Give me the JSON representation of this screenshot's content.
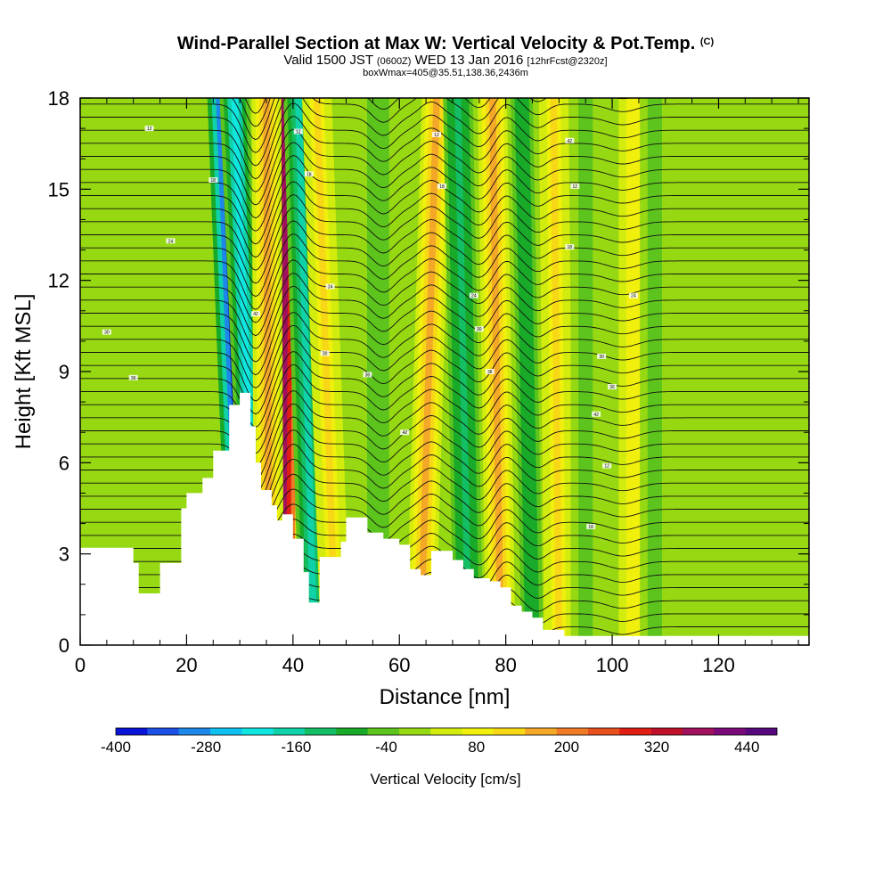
{
  "header": {
    "title": "Wind-Parallel Section at Max W: Vertical Velocity & Pot.Temp.",
    "title_tag": "(C)",
    "subtitle_a": "Valid 1500 JST",
    "subtitle_b": "(0600Z)",
    "subtitle_c": "WED 13 Jan 2016",
    "subtitle_d": "[12hrFcst@2320z]",
    "line3": "boxWmax=405@35.51,138.36,2436m"
  },
  "chart_data": {
    "type": "heatmap",
    "title": "Wind-Parallel Section at Max W: Vertical Velocity & Pot.Temp.",
    "xlabel": "Distance [nm]",
    "ylabel": "Height [Kft MSL]",
    "xlim": [
      0,
      137
    ],
    "ylim": [
      0,
      18
    ],
    "x_ticks": [
      "0",
      "20",
      "40",
      "60",
      "80",
      "100",
      "120"
    ],
    "y_ticks": [
      "0",
      "3",
      "6",
      "9",
      "12",
      "15",
      "18"
    ],
    "x_tick_values": [
      0,
      20,
      40,
      60,
      80,
      100,
      120
    ],
    "y_tick_values": [
      0,
      3,
      6,
      9,
      12,
      15,
      18
    ],
    "colorbar": {
      "title": "Vertical Velocity [cm/s]",
      "min": -400,
      "max": 480,
      "labels": [
        "-400",
        "-280",
        "-160",
        "-40",
        "80",
        "200",
        "320",
        "440"
      ],
      "label_values": [
        -400,
        -280,
        -160,
        -40,
        80,
        200,
        320,
        440
      ],
      "colors": [
        "#0a14d6",
        "#1c50e6",
        "#1e88ea",
        "#10c0f0",
        "#10e6e0",
        "#10d2a8",
        "#14be64",
        "#18aa28",
        "#5cc41c",
        "#96d812",
        "#d2ec0e",
        "#f0f00c",
        "#f8d816",
        "#f4a828",
        "#f07a26",
        "#e8501e",
        "#e01e14",
        "#c0102a",
        "#a0105c",
        "#7a0a7a",
        "#56087e"
      ]
    },
    "velocity_bands": [
      {
        "x_bottom": 31,
        "x_top": 27,
        "value": -380
      },
      {
        "x_bottom": 33.5,
        "x_top": 29,
        "value": -200
      },
      {
        "x_bottom": 38,
        "x_top": 38.5,
        "value": 380
      },
      {
        "x_bottom": 35.5,
        "x_top": 35,
        "value": 160
      },
      {
        "x_bottom": 44,
        "x_top": 41,
        "value": -150
      },
      {
        "x_bottom": 48,
        "x_top": 44.5,
        "value": 120
      },
      {
        "x_bottom": 56,
        "x_top": 56,
        "value": -60
      },
      {
        "x_bottom": 64,
        "x_top": 67,
        "value": 150
      },
      {
        "x_bottom": 73,
        "x_top": 71,
        "value": -130
      },
      {
        "x_bottom": 79,
        "x_top": 77.5,
        "value": 160
      },
      {
        "x_bottom": 85,
        "x_top": 83,
        "value": -90
      },
      {
        "x_bottom": 90,
        "x_top": 89,
        "value": 110
      },
      {
        "x_bottom": 95,
        "x_top": 95,
        "value": -40
      },
      {
        "x_bottom": 104,
        "x_top": 104,
        "value": 100
      },
      {
        "x_bottom": 108,
        "x_top": 108,
        "value": -45
      }
    ],
    "terrain": {
      "x": [
        0,
        5,
        8,
        10,
        11,
        13,
        15,
        16,
        19,
        20,
        23,
        25,
        28,
        30,
        31,
        32,
        33,
        34,
        35,
        36,
        37,
        38,
        40,
        42,
        43,
        45,
        46,
        49,
        50,
        52,
        54,
        57,
        60,
        62,
        64,
        66,
        68,
        70,
        72,
        74,
        75,
        77,
        79,
        81,
        83,
        85,
        87,
        89,
        91,
        95,
        100,
        105,
        110,
        115,
        120,
        125,
        130,
        137
      ],
      "height": [
        3.2,
        3.2,
        3.2,
        2.7,
        1.7,
        1.7,
        2.7,
        2.7,
        4.5,
        5.0,
        5.5,
        6.4,
        7.9,
        8.3,
        8.3,
        7.2,
        6.0,
        5.1,
        5.1,
        4.6,
        4.1,
        4.3,
        3.5,
        2.4,
        1.4,
        2.9,
        2.9,
        3.4,
        4.2,
        4.2,
        3.7,
        3.5,
        3.3,
        2.5,
        2.3,
        3.1,
        3.1,
        2.8,
        2.5,
        2.2,
        2.2,
        2.1,
        1.9,
        1.3,
        1.1,
        0.9,
        0.5,
        0.5,
        0.3,
        0.3,
        0.3,
        0.3,
        0.3,
        0.3,
        0.3,
        0.3,
        0.3,
        0.3
      ]
    },
    "theta_contour_labels": [
      "12",
      "18",
      "24",
      "30",
      "36",
      "42"
    ]
  }
}
